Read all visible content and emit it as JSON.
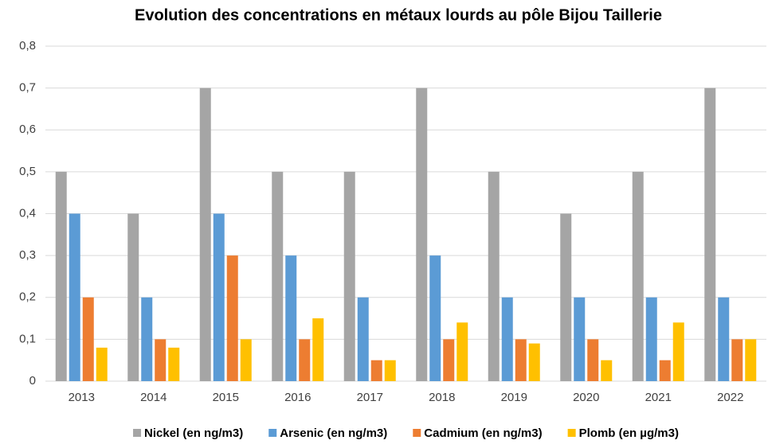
{
  "chart_data": {
    "type": "bar",
    "title": "Evolution des concentrations en métaux lourds au pôle Bijou Taillerie",
    "categories": [
      "2013",
      "2014",
      "2015",
      "2016",
      "2017",
      "2018",
      "2019",
      "2020",
      "2021",
      "2022"
    ],
    "series": [
      {
        "name": "Nickel (en ng/m3)",
        "color": "#a5a5a5",
        "values": [
          0.5,
          0.4,
          0.7,
          0.5,
          0.5,
          0.7,
          0.5,
          0.4,
          0.5,
          0.7
        ]
      },
      {
        "name": "Arsenic (en ng/m3)",
        "color": "#5b9bd5",
        "values": [
          0.4,
          0.2,
          0.4,
          0.3,
          0.2,
          0.3,
          0.2,
          0.2,
          0.2,
          0.2
        ]
      },
      {
        "name": "Cadmium (en ng/m3)",
        "color": "#ed7d31",
        "values": [
          0.2,
          0.1,
          0.3,
          0.1,
          0.05,
          0.1,
          0.1,
          0.1,
          0.05,
          0.1
        ]
      },
      {
        "name": "Plomb (en µg/m3)",
        "color": "#ffc000",
        "values": [
          0.08,
          0.08,
          0.1,
          0.15,
          0.05,
          0.14,
          0.09,
          0.05,
          0.14,
          0.1
        ]
      }
    ],
    "ylim": [
      0,
      0.8
    ],
    "yticks": [
      0,
      {
        "value": 0.1,
        "label": "0,1"
      },
      {
        "value": 0.2,
        "label": "0,2"
      },
      {
        "value": 0.3,
        "label": "0,3"
      },
      {
        "value": 0.4,
        "label": "0,4"
      },
      {
        "value": 0.5,
        "label": "0,5"
      },
      {
        "value": 0.6,
        "label": "0,6"
      },
      {
        "value": 0.7,
        "label": "0,7"
      },
      {
        "value": 0.8,
        "label": "0,8"
      }
    ],
    "grid": true,
    "legend": "bottom"
  }
}
